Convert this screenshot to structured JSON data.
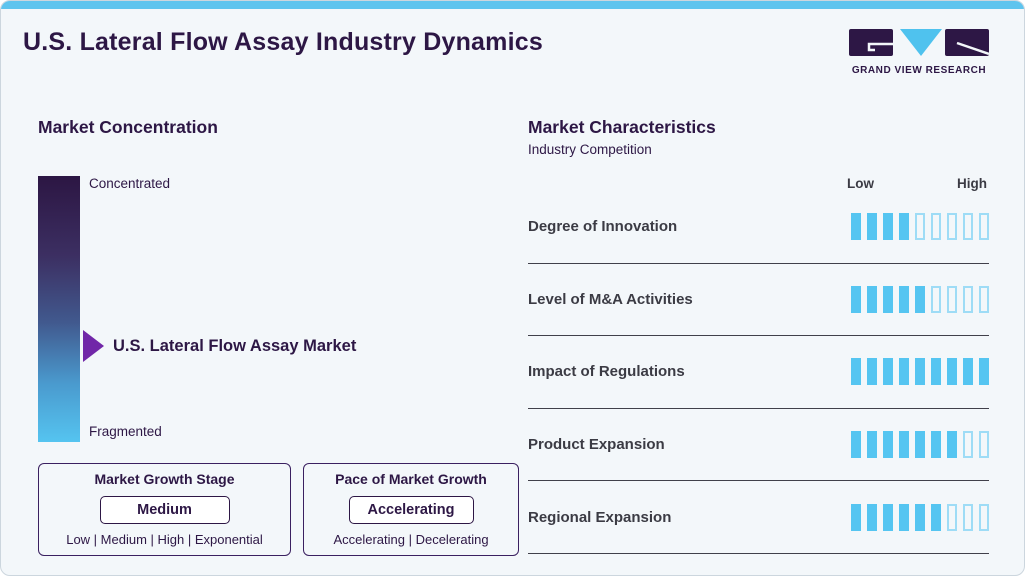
{
  "header": {
    "title": "U.S. Lateral Flow Assay Industry Dynamics",
    "logo_text": "GRAND VIEW RESEARCH"
  },
  "market_concentration": {
    "heading": "Market Concentration",
    "top_label": "Concentrated",
    "bottom_label": "Fragmented",
    "pointer_label": "U.S. Lateral Flow Assay Market"
  },
  "growth_stage_box": {
    "title": "Market Growth Stage",
    "value": "Medium",
    "options": "Low | Medium | High | Exponential"
  },
  "pace_box": {
    "title": "Pace of Market Growth",
    "value": "Accelerating",
    "options": "Accelerating | Decelerating"
  },
  "market_characteristics": {
    "heading": "Market Characteristics",
    "subheading": "Industry Competition",
    "scale_low": "Low",
    "scale_high": "High",
    "rows": [
      {
        "label": "Degree of Innovation",
        "filled": 4,
        "total": 9
      },
      {
        "label": "Level of M&A Activities",
        "filled": 5,
        "total": 9
      },
      {
        "label": "Impact of Regulations",
        "filled": 9,
        "total": 9
      },
      {
        "label": "Product Expansion",
        "filled": 7,
        "total": 9
      },
      {
        "label": "Regional Expansion",
        "filled": 6,
        "total": 9
      }
    ]
  },
  "chart_data": {
    "type": "bar",
    "title": "Market Characteristics — Industry Competition",
    "categories": [
      "Degree of Innovation",
      "Level of M&A Activities",
      "Impact of Regulations",
      "Product Expansion",
      "Regional Expansion"
    ],
    "values": [
      4,
      5,
      9,
      7,
      6
    ],
    "scale": {
      "segments": 9,
      "min_label": "Low",
      "max_label": "High"
    },
    "legend_position": "none",
    "notes": "Horizontal segmented rating bars; filled segments out of 9 from Low to High"
  },
  "colors": {
    "bg": "#f3f7fa",
    "canvas_border": "#ccd6de",
    "purple_dark": "#2d1745",
    "purple_arrow": "#7127a8",
    "blue_accent": "#5ec4ee",
    "blue_fill": "#55c5f1",
    "blue_outline": "#9edcf6",
    "text_dark": "#3b3b44",
    "divider": "#40404a",
    "border_box": "#3a2060",
    "gradient_top": "#2c1643",
    "gradient_bottom": "#55c4f0"
  }
}
